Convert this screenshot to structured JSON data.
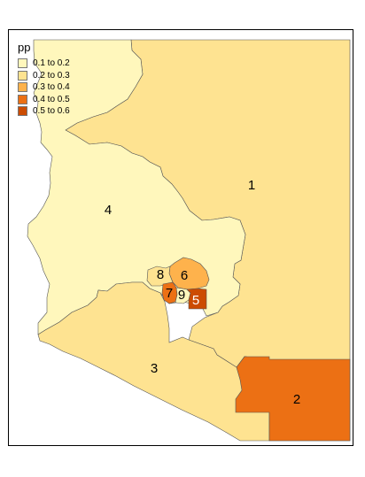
{
  "legend": {
    "title": "pp",
    "entries": [
      {
        "label": "0.1 to 0.2",
        "color": "#FFF7BC"
      },
      {
        "label": "0.2 to 0.3",
        "color": "#FEE391"
      },
      {
        "label": "0.3 to 0.4",
        "color": "#FEB24C"
      },
      {
        "label": "0.4 to 0.5",
        "color": "#EC7014"
      },
      {
        "label": "0.5 to 0.6",
        "color": "#CC4C02"
      }
    ]
  },
  "districts": [
    {
      "id": "1",
      "label": "1",
      "color": "#FEE391"
    },
    {
      "id": "2",
      "label": "2",
      "color": "#EC7014"
    },
    {
      "id": "3",
      "label": "3",
      "color": "#FEE391"
    },
    {
      "id": "4",
      "label": "4",
      "color": "#FFF7BC"
    },
    {
      "id": "5",
      "label": "5",
      "color": "#CC4C02"
    },
    {
      "id": "6",
      "label": "6",
      "color": "#FEB24C"
    },
    {
      "id": "7",
      "label": "7",
      "color": "#EC7014"
    },
    {
      "id": "8",
      "label": "8",
      "color": "#FEE391"
    },
    {
      "id": "9",
      "label": "9",
      "color": "#FFF7BC"
    }
  ]
}
